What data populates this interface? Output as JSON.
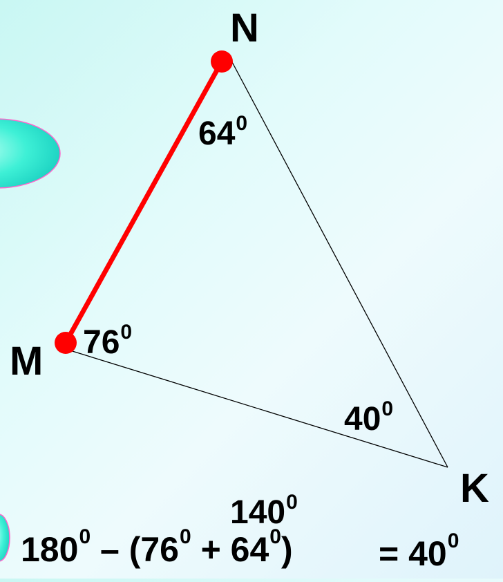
{
  "vertices": {
    "N": "N",
    "M": "M",
    "K": "K"
  },
  "angles": {
    "n_value": "64",
    "m_value": "76",
    "k_value": "40",
    "degree_mark": "0"
  },
  "sum": {
    "value": "140",
    "degree_mark": "0"
  },
  "formula": {
    "part1": "180",
    "deg1": "0",
    "part2": " – (76",
    "deg2": "0",
    "part3": " + 64",
    "deg3": "0",
    "part4": ")",
    "part5": "= 40",
    "deg5": "0"
  },
  "colors": {
    "highlight_side": "#ff0000",
    "outline": "#000000",
    "ellipse_fill": "#3ef0d6",
    "ellipse_stroke": "#ff66cc"
  }
}
